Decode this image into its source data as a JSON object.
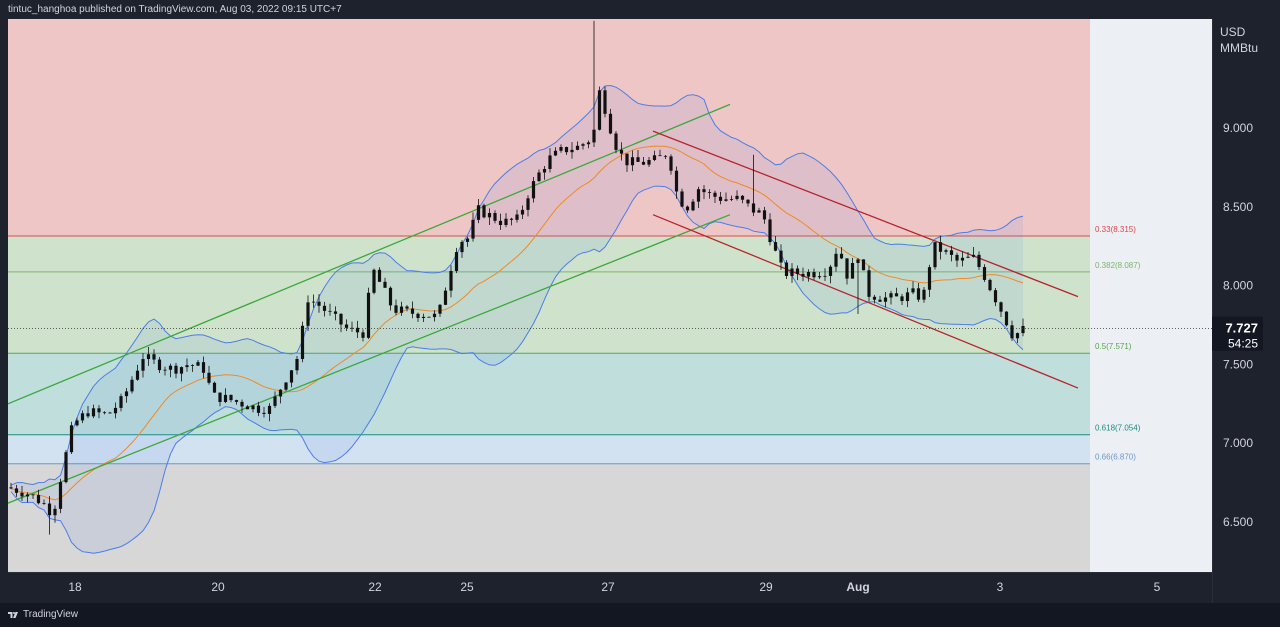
{
  "header": {
    "publisher_text": "tintuc_hanghoa published on TradingView.com, Aug 03, 2022 09:15 UTC+7"
  },
  "footer": {
    "logo_text": "TradingView"
  },
  "price_scale": {
    "unit_line1": "USD",
    "unit_line2": "MMBtu"
  },
  "colors": {
    "zone_red": "#efc6c6",
    "zone_green": "#cfe3cc",
    "zone_teal": "#c0dedb",
    "zone_blue": "#d3e2f0",
    "zone_gray": "#d7d7d7",
    "channel_up": "#3aa83a",
    "channel_down": "#b8232c",
    "bollinger": "#4a7ee8",
    "ma": "#f08a24",
    "candle": "#111111",
    "fib_033": "#e0484a",
    "fib_0382": "#7ab76e",
    "fib_05": "#5aa64e",
    "fib_0618": "#1a8f80",
    "fib_066": "#6d97c9"
  },
  "chart_data": {
    "type": "candlestick",
    "instrument_unit": "USD/MMBtu",
    "y_ticks": [
      "9.000",
      "8.500",
      "8.000",
      "7.500",
      "7.000",
      "6.500"
    ],
    "y_tick_values": [
      9.0,
      8.5,
      8.0,
      7.5,
      7.0,
      6.5
    ],
    "x_ticks": [
      "18",
      "20",
      "22",
      "25",
      "27",
      "29",
      "Aug",
      "3",
      "5"
    ],
    "current_price": "7.727",
    "countdown": "54:25",
    "fib_levels": [
      {
        "label": "0.33(8.315)",
        "value": 8.315
      },
      {
        "label": "0.382(8.087)",
        "value": 8.087
      },
      {
        "label": "0.5(7.571)",
        "value": 7.571
      },
      {
        "label": "0.618(7.054)",
        "value": 7.054
      },
      {
        "label": "0.66(6.870)",
        "value": 6.87
      }
    ],
    "price_series": [
      [
        0,
        6.72
      ],
      [
        20,
        6.68
      ],
      [
        35,
        6.62
      ],
      [
        45,
        6.55
      ],
      [
        55,
        6.85
      ],
      [
        65,
        7.12
      ],
      [
        80,
        7.2
      ],
      [
        100,
        7.18
      ],
      [
        115,
        7.28
      ],
      [
        125,
        7.42
      ],
      [
        135,
        7.55
      ],
      [
        150,
        7.5
      ],
      [
        165,
        7.47
      ],
      [
        180,
        7.5
      ],
      [
        195,
        7.48
      ],
      [
        205,
        7.3
      ],
      [
        220,
        7.28
      ],
      [
        235,
        7.25
      ],
      [
        250,
        7.22
      ],
      [
        262,
        7.22
      ],
      [
        275,
        7.38
      ],
      [
        290,
        7.55
      ],
      [
        300,
        7.92
      ],
      [
        310,
        7.88
      ],
      [
        325,
        7.8
      ],
      [
        340,
        7.72
      ],
      [
        355,
        7.7
      ],
      [
        365,
        8.1
      ],
      [
        375,
        7.98
      ],
      [
        385,
        7.85
      ],
      [
        400,
        7.83
      ],
      [
        415,
        7.82
      ],
      [
        430,
        7.8
      ],
      [
        440,
        8.05
      ],
      [
        450,
        8.28
      ],
      [
        460,
        8.3
      ],
      [
        470,
        8.48
      ],
      [
        480,
        8.45
      ],
      [
        495,
        8.4
      ],
      [
        510,
        8.42
      ],
      [
        520,
        8.58
      ],
      [
        530,
        8.7
      ],
      [
        540,
        8.8
      ],
      [
        555,
        8.86
      ],
      [
        570,
        8.88
      ],
      [
        585,
        8.94
      ],
      [
        592,
        9.25
      ],
      [
        600,
        9.05
      ],
      [
        610,
        8.85
      ],
      [
        620,
        8.78
      ],
      [
        635,
        8.78
      ],
      [
        650,
        8.8
      ],
      [
        660,
        8.85
      ],
      [
        670,
        8.55
      ],
      [
        680,
        8.5
      ],
      [
        690,
        8.62
      ],
      [
        700,
        8.58
      ],
      [
        715,
        8.55
      ],
      [
        730,
        8.55
      ],
      [
        745,
        8.48
      ],
      [
        755,
        8.45
      ],
      [
        765,
        8.25
      ],
      [
        775,
        8.08
      ],
      [
        790,
        8.08
      ],
      [
        805,
        8.08
      ],
      [
        820,
        8.1
      ],
      [
        830,
        8.25
      ],
      [
        840,
        8.05
      ],
      [
        850,
        8.2
      ],
      [
        860,
        7.95
      ],
      [
        875,
        7.92
      ],
      [
        890,
        7.92
      ],
      [
        905,
        7.95
      ],
      [
        915,
        7.92
      ],
      [
        925,
        8.25
      ],
      [
        935,
        8.22
      ],
      [
        950,
        8.15
      ],
      [
        965,
        8.18
      ],
      [
        975,
        8.08
      ],
      [
        985,
        7.95
      ],
      [
        995,
        7.82
      ],
      [
        1005,
        7.68
      ],
      [
        1015,
        7.72
      ],
      [
        1027,
        7.73
      ]
    ],
    "channel_up": {
      "upper": [
        [
          0,
          7.25
        ],
        [
          722,
          9.15
        ]
      ],
      "lower": [
        [
          0,
          6.62
        ],
        [
          722,
          8.45
        ]
      ]
    },
    "channel_down": {
      "upper": [
        [
          645,
          8.98
        ],
        [
          1070,
          7.93
        ]
      ],
      "lower": [
        [
          645,
          8.45
        ],
        [
          1070,
          7.35
        ]
      ]
    }
  }
}
